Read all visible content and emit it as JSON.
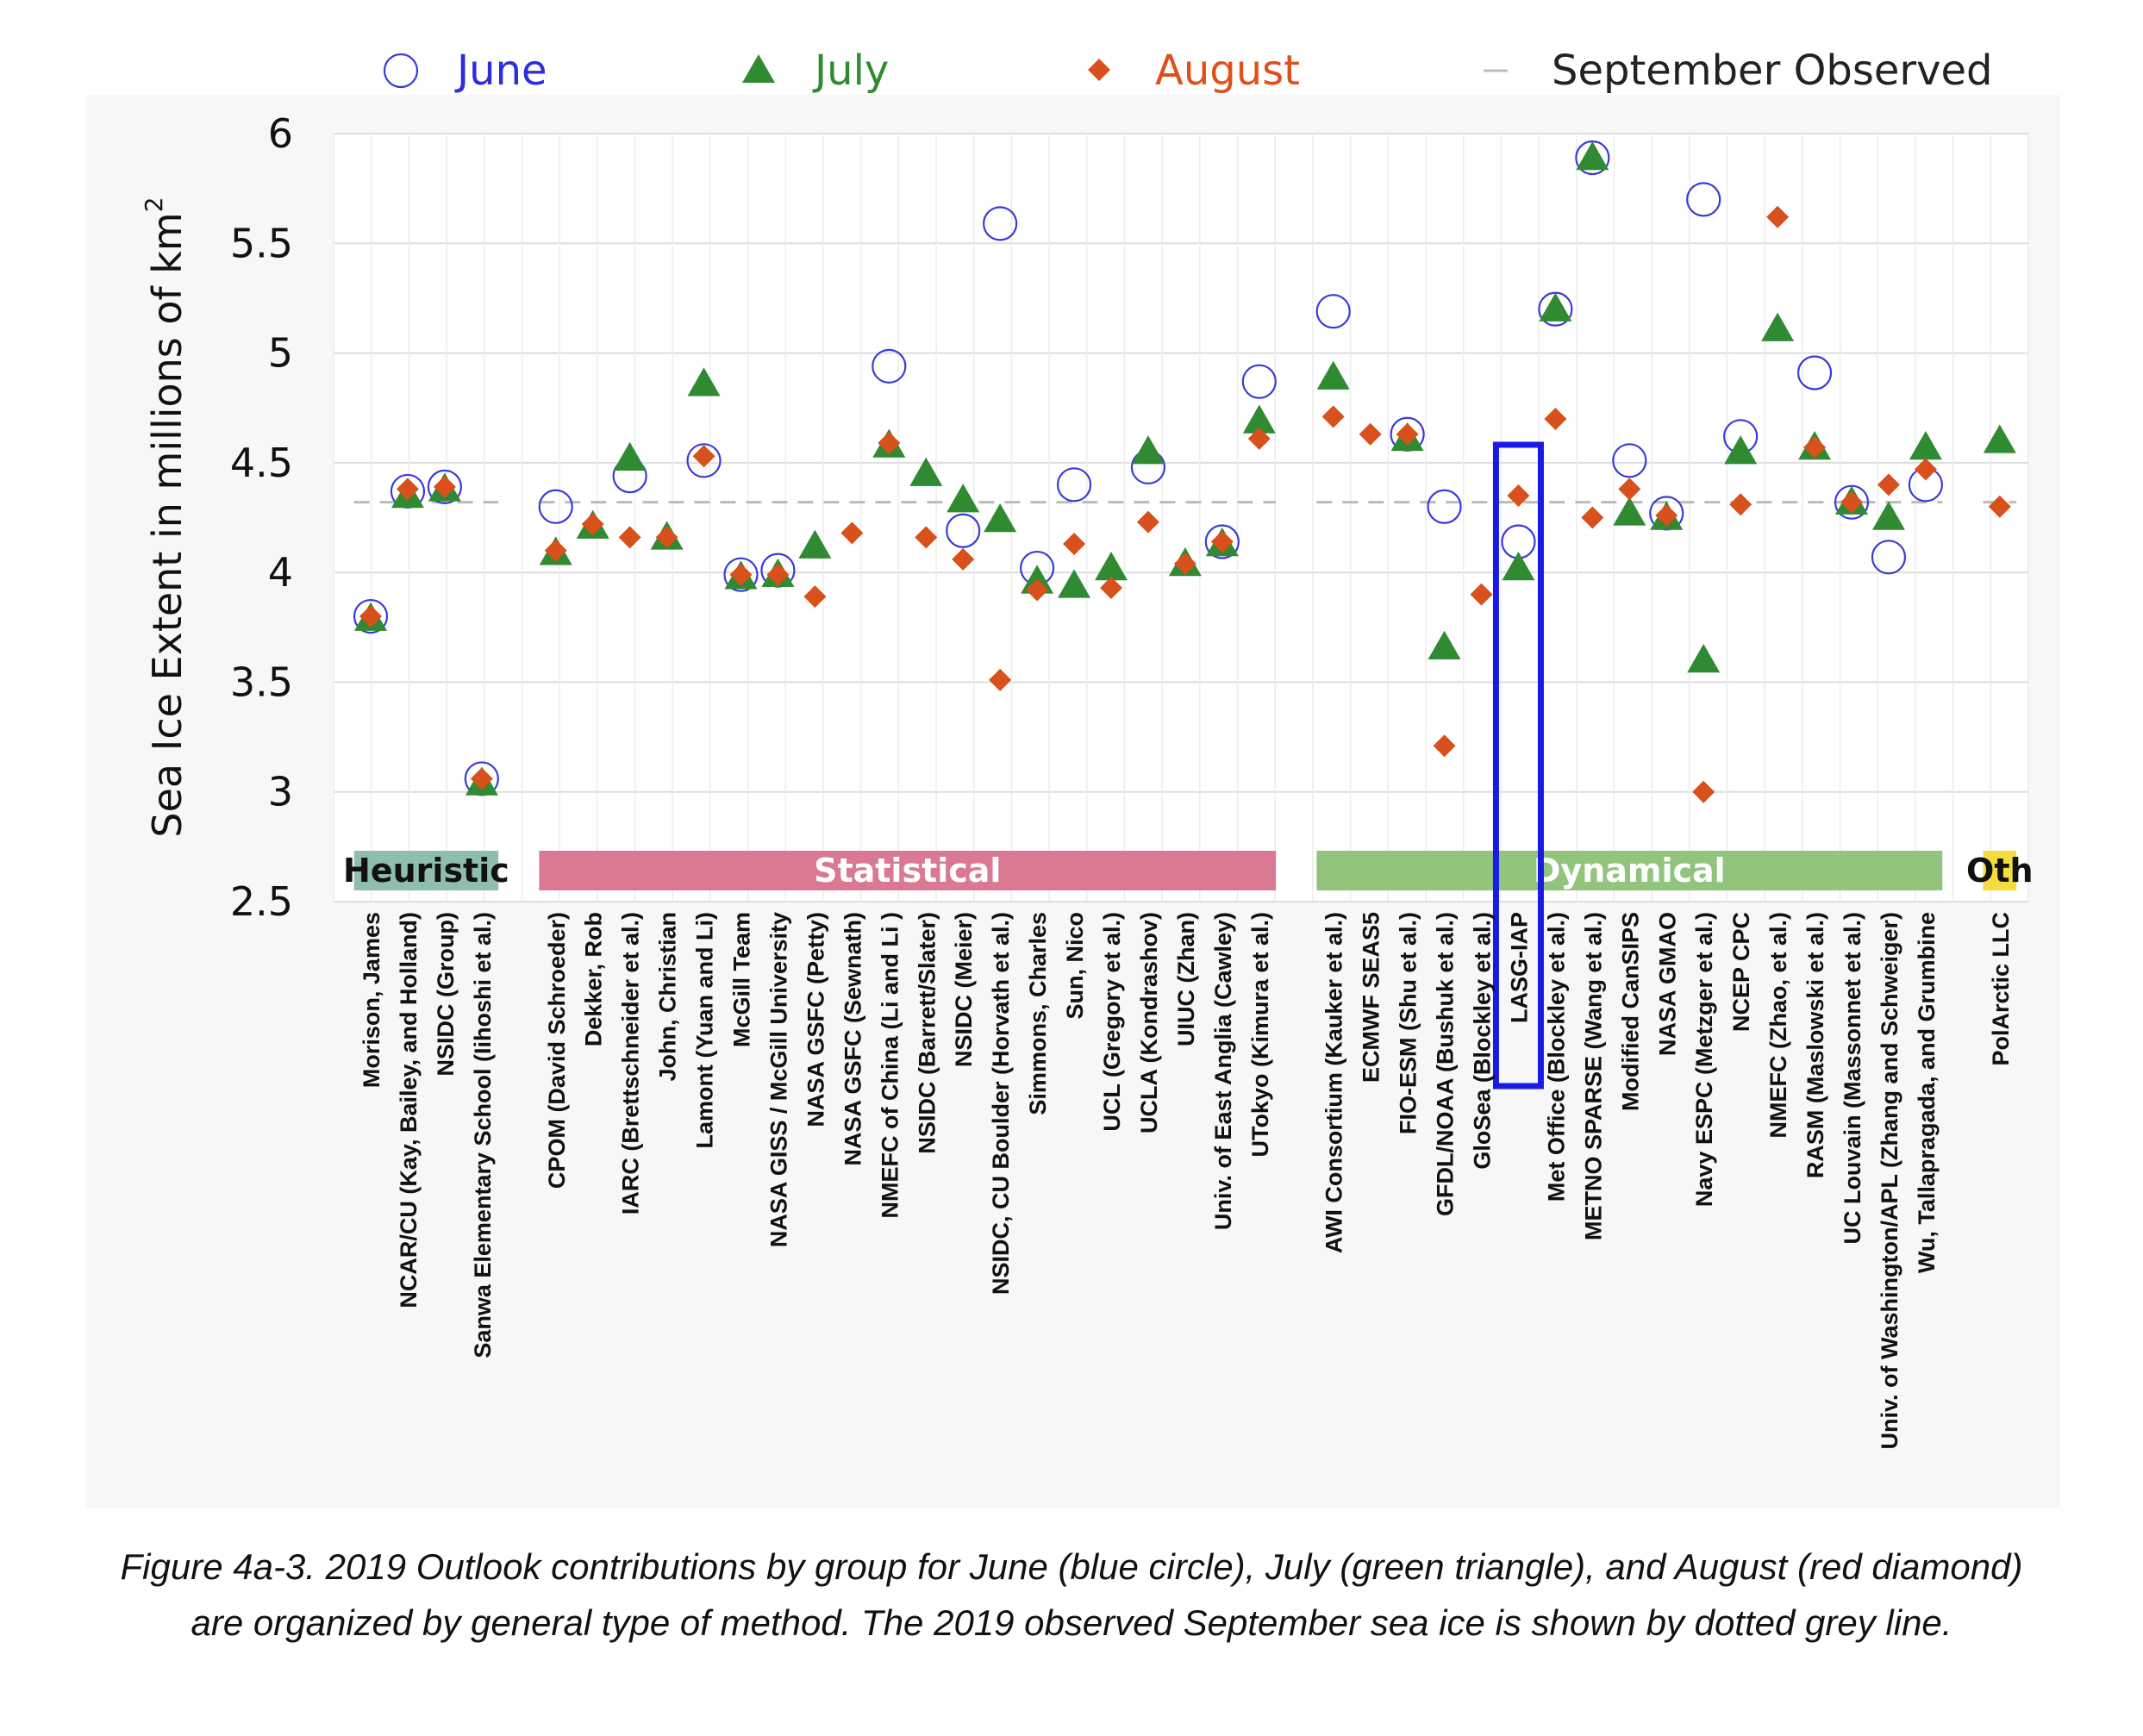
{
  "chart_data": {
    "type": "scatter",
    "ylabel": "Sea Ice Extent in millions of km",
    "ylabel_superscript": "2",
    "ylim": [
      2.5,
      6
    ],
    "yticks": [
      "2.5",
      "3",
      "3.5",
      "4",
      "4.5",
      "5",
      "5.5",
      "6"
    ],
    "grid": "horizontal and vertical",
    "legend_position": "top",
    "legend": [
      {
        "label": "June",
        "marker": "open-circle",
        "color": "#3a3adb",
        "text_color": "#2c2ce0"
      },
      {
        "label": "July",
        "marker": "triangle",
        "color": "#2f8a32",
        "text_color": "#2f8a32"
      },
      {
        "label": "August",
        "marker": "diamond",
        "color": "#d8501b",
        "text_color": "#e0501b"
      },
      {
        "label": "September Observed",
        "marker": "dash",
        "color": "#bbbbbb",
        "text_color": "#222222"
      }
    ],
    "september_observed": 4.32,
    "groups": [
      {
        "label": "Heuristic",
        "color": "#8fbfac",
        "text_color": "#111111",
        "categories": [
          "Morison, James",
          "NCAR/CU (Kay, Bailey, and Holland)",
          "NSIDC (Group)",
          "Sanwa Elementary School (Iihoshi et al.)"
        ]
      },
      {
        "label": "Statistical",
        "color": "#d97a92",
        "text_color": "#ffffff",
        "categories": [
          "CPOM (David Schroeder)",
          "Dekker, Rob",
          "IARC (Brettschneider et al.)",
          "John, Christian",
          "Lamont (Yuan and Li)",
          "McGill Team",
          "NASA GISS / McGill University",
          "NASA GSFC (Petty)",
          "NASA GSFC (Sewnath)",
          "NMEFC of China (Li and Li )",
          "NSIDC (Barrett/Slater)",
          "NSIDC (Meier)",
          "NSIDC, CU Boulder (Horvath et al.)",
          "Simmons, Charles",
          "Sun, Nico",
          "UCL (Gregory et al.)",
          "UCLA (Kondrashov)",
          "UIUC (Zhan)",
          "Univ. of East Anglia (Cawley)",
          "UTokyo (Kimura et al.)"
        ]
      },
      {
        "label": "Dynamical",
        "color": "#93c47d",
        "text_color": "#ffffff",
        "categories": [
          "AWI Consortium (Kauker et al.)",
          "ECMWF SEAS5",
          "FIO-ESM (Shu et al.)",
          "GFDL/NOAA (Bushuk et al.)",
          "GloSea (Blockley et al.)",
          "LASG-IAP",
          "Met Office (Blockley et al.)",
          "METNO SPARSE (Wang et al.)",
          "Modified CanSIPS",
          "NASA GMAO",
          "Navy ESPC (Metzger et al.)",
          "NCEP CPC",
          "NMEFC (Zhao, et al.)",
          "RASM (Maslowski et al.)",
          "UC Louvain (Massonnet et al.)",
          "Univ. of Washington/APL (Zhang and Schweiger)",
          "Wu, Tallapragada, and Grumbine"
        ]
      },
      {
        "label": "Oth",
        "color": "#f4dc3f",
        "text_color": "#111111",
        "categories": [
          "PolArctic LLC"
        ]
      }
    ],
    "series": [
      {
        "name": "June",
        "values": [
          3.8,
          4.37,
          4.39,
          3.06,
          4.3,
          null,
          4.44,
          null,
          4.51,
          3.99,
          4.01,
          null,
          null,
          4.94,
          null,
          4.19,
          5.59,
          4.02,
          4.4,
          null,
          4.48,
          null,
          4.14,
          4.87,
          5.19,
          null,
          4.63,
          4.3,
          null,
          4.14,
          5.2,
          5.89,
          4.51,
          4.27,
          5.7,
          4.62,
          null,
          4.91,
          4.32,
          4.07,
          4.4,
          null
        ]
      },
      {
        "name": "July",
        "values": [
          3.79,
          4.35,
          4.38,
          3.04,
          4.09,
          4.21,
          4.52,
          4.16,
          4.86,
          3.98,
          3.99,
          4.12,
          null,
          4.58,
          4.45,
          4.33,
          4.24,
          3.96,
          3.94,
          4.02,
          4.55,
          4.04,
          4.13,
          4.69,
          4.89,
          null,
          4.61,
          3.66,
          null,
          4.02,
          5.2,
          5.89,
          4.27,
          4.25,
          3.6,
          4.55,
          5.11,
          4.57,
          4.32,
          4.25,
          4.57,
          4.6
        ]
      },
      {
        "name": "August",
        "values": [
          3.8,
          4.38,
          4.39,
          3.06,
          4.1,
          4.22,
          4.16,
          4.16,
          4.53,
          3.99,
          3.99,
          3.89,
          4.18,
          4.59,
          4.16,
          4.06,
          3.51,
          3.92,
          4.13,
          3.93,
          4.23,
          4.04,
          4.14,
          4.61,
          4.71,
          4.63,
          4.63,
          3.21,
          3.9,
          4.35,
          4.7,
          4.25,
          4.38,
          4.26,
          3.0,
          4.31,
          5.62,
          4.57,
          4.32,
          4.4,
          4.47,
          4.3
        ]
      }
    ],
    "highlighted_category": "LASG-IAP",
    "highlight_color": "#1a1ae6"
  },
  "caption": "Figure 4a-3. 2019 Outlook contributions by group for June (blue circle), July (green triangle), and August (red diamond) are organized by general type of method. The 2019 observed September sea ice is shown by dotted grey line."
}
